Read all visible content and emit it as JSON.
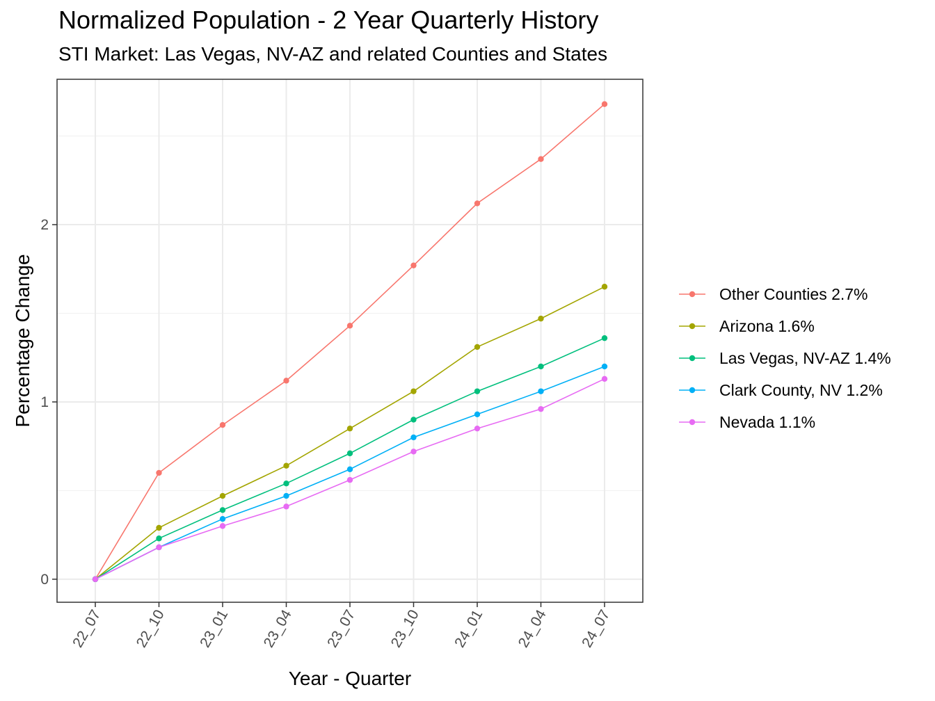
{
  "chart_data": {
    "type": "line",
    "title": "Normalized Population - 2 Year Quarterly History",
    "subtitle": "STI Market: Las Vegas, NV-AZ and related Counties and States",
    "xlabel": "Year - Quarter",
    "ylabel": "Percentage Change",
    "categories": [
      "22_07",
      "22_10",
      "23_01",
      "23_04",
      "23_07",
      "23_10",
      "24_01",
      "24_04",
      "24_07"
    ],
    "ylim": [
      -0.13,
      2.82
    ],
    "yticks": [
      0,
      1,
      2
    ],
    "grid": true,
    "legend_position": "right",
    "series": [
      {
        "name": "Other Counties 2.7%",
        "color": "#F8766D",
        "values": [
          0,
          0.6,
          0.87,
          1.12,
          1.43,
          1.77,
          2.12,
          2.37,
          2.68
        ]
      },
      {
        "name": "Arizona 1.6%",
        "color": "#A3A500",
        "values": [
          0,
          0.29,
          0.47,
          0.64,
          0.85,
          1.06,
          1.31,
          1.47,
          1.65
        ]
      },
      {
        "name": "Las Vegas, NV-AZ 1.4%",
        "color": "#00BF7D",
        "values": [
          0,
          0.23,
          0.39,
          0.54,
          0.71,
          0.9,
          1.06,
          1.2,
          1.36
        ]
      },
      {
        "name": "Clark County, NV 1.2%",
        "color": "#00B0F6",
        "values": [
          0,
          0.18,
          0.34,
          0.47,
          0.62,
          0.8,
          0.93,
          1.06,
          1.2
        ]
      },
      {
        "name": "Nevada 1.1%",
        "color": "#E76BF3",
        "values": [
          0,
          0.18,
          0.3,
          0.41,
          0.56,
          0.72,
          0.85,
          0.96,
          1.13
        ]
      }
    ]
  }
}
